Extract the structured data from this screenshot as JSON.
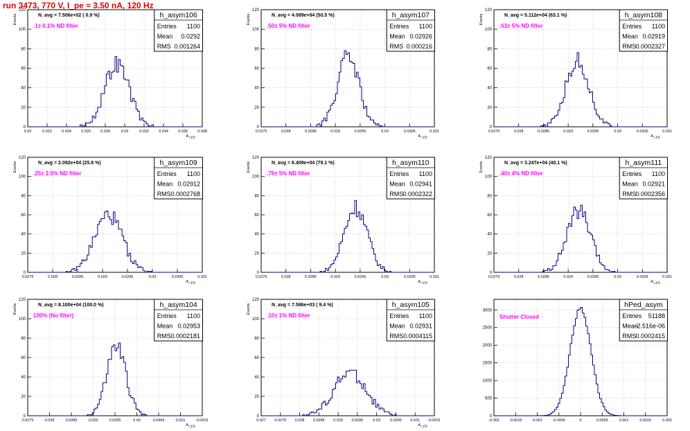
{
  "run_title": "run 3473,   770 V, I_pe ≈ 3.50 nA, 120 Hz",
  "colors": {
    "hist_line": "#000080",
    "title_red": "#e00000",
    "filter_text": "#ff00ff",
    "grid": "#c8c8c8"
  },
  "chart_data": [
    {
      "type": "histogram",
      "name": "h_asym106",
      "navg": "N_avg = 7.506e+02 ( 0.9 %)",
      "label": ".1± 0.1% ND filter",
      "stats": {
        "entries": "1100",
        "mean": "0.0292",
        "rms": "0.001264"
      },
      "ylabel": "Events",
      "xlabel": "A_LED",
      "xlim": [
        0.02,
        0.038
      ],
      "ylim": [
        0,
        120
      ],
      "xticks": [
        0.02,
        0.022,
        0.024,
        0.026,
        0.028,
        0.03,
        0.032,
        0.034,
        0.036,
        0.038
      ],
      "xtick_labels": [
        "0.02",
        "0.022",
        "0.024",
        "0.026",
        "0.028",
        "0.03",
        "0.032",
        "0.034",
        "0.036",
        "0.038"
      ],
      "yticks": [
        0,
        20,
        40,
        60,
        80,
        100,
        120
      ],
      "mu": 0.0292,
      "sigma": 0.00126,
      "peak": 65,
      "seed": 106
    },
    {
      "type": "histogram",
      "name": "h_asym107",
      "navg": "N_avg = 4.089e+04 (50.5 %)",
      "label": ".50± 5% ND filter",
      "stats": {
        "entries": "1100",
        "mean": "0.02926",
        "rms": "0.000216"
      },
      "ylabel": "Events",
      "xlabel": "A_LED",
      "xlim": [
        0.0275,
        0.031
      ],
      "ylim": [
        0,
        120
      ],
      "xticks": [
        0.0275,
        0.028,
        0.0285,
        0.029,
        0.0295,
        0.03,
        0.0305,
        0.031
      ],
      "xtick_labels": [
        "0.0275",
        "0.028",
        "0.0285",
        "0.029",
        "0.0295",
        "0.03",
        "0.0305",
        "0.031"
      ],
      "yticks": [
        0,
        20,
        40,
        60,
        80,
        100,
        120
      ],
      "mu": 0.02926,
      "sigma": 0.000216,
      "peak": 72,
      "seed": 107
    },
    {
      "type": "histogram",
      "name": "h_asym108",
      "navg": "N_avg = 5.112e+04 (63.1 %)",
      "label": ".63± 5% ND filter",
      "stats": {
        "entries": "1100",
        "mean": "0.02919",
        "rms": "0.0002327"
      },
      "ylabel": "Events",
      "xlabel": "A_LED",
      "xlim": [
        0.0275,
        0.031
      ],
      "ylim": [
        0,
        120
      ],
      "xticks": [
        0.0275,
        0.028,
        0.0285,
        0.029,
        0.0295,
        0.03,
        0.0305,
        0.031
      ],
      "xtick_labels": [
        "0.0275",
        "0.028",
        "0.0285",
        "0.029",
        "0.0295",
        "0.03",
        "0.0305",
        "0.031"
      ],
      "yticks": [
        0,
        20,
        40,
        60,
        80,
        100,
        120
      ],
      "mu": 0.02919,
      "sigma": 0.000233,
      "peak": 68,
      "seed": 108
    },
    {
      "type": "histogram",
      "name": "h_asym109",
      "navg": "N_avg = 2.092e+04 (25.8 %)",
      "label": ".25± 2.5% ND filter",
      "stats": {
        "entries": "1100",
        "mean": "0.02912",
        "rms": "0.0002768"
      },
      "ylabel": "Events",
      "xlabel": "A_LED",
      "xlim": [
        0.0275,
        0.031
      ],
      "ylim": [
        0,
        120
      ],
      "xticks": [
        0.0275,
        0.028,
        0.0285,
        0.029,
        0.0295,
        0.03,
        0.0305,
        0.031
      ],
      "xtick_labels": [
        "0.0275",
        "0.028",
        "0.0285",
        "0.029",
        "0.0295",
        "0.03",
        "0.0305",
        "0.031"
      ],
      "yticks": [
        0,
        20,
        40,
        60,
        80,
        100,
        120
      ],
      "mu": 0.02912,
      "sigma": 0.000277,
      "peak": 60,
      "seed": 109
    },
    {
      "type": "histogram",
      "name": "h_asym110",
      "navg": "N_avg = 6.409e+04 (79.1 %)",
      "label": ".79± 5% ND filter",
      "stats": {
        "entries": "1100",
        "mean": "0.02941",
        "rms": "0.0002322"
      },
      "ylabel": "Events",
      "xlabel": "A_LED",
      "xlim": [
        0.0275,
        0.031
      ],
      "ylim": [
        0,
        120
      ],
      "xticks": [
        0.0275,
        0.028,
        0.0285,
        0.029,
        0.0295,
        0.03,
        0.0305,
        0.031
      ],
      "xtick_labels": [
        "0.0275",
        "0.028",
        "0.0285",
        "0.029",
        "0.0295",
        "0.03",
        "0.0305",
        "0.031"
      ],
      "yticks": [
        0,
        20,
        40,
        60,
        80,
        100,
        120
      ],
      "mu": 0.02941,
      "sigma": 0.000232,
      "peak": 68,
      "seed": 110
    },
    {
      "type": "histogram",
      "name": "h_asym111",
      "navg": "N_avg = 3.247e+04 (40.1 %)",
      "label": ".40± 4% ND filter",
      "stats": {
        "entries": "1100",
        "mean": "0.02921",
        "rms": "0.0002356"
      },
      "ylabel": "Events",
      "xlabel": "A_LED",
      "xlim": [
        0.0275,
        0.031
      ],
      "ylim": [
        0,
        120
      ],
      "xticks": [
        0.0275,
        0.028,
        0.0285,
        0.029,
        0.0295,
        0.03,
        0.0305,
        0.031
      ],
      "xtick_labels": [
        "0.0275",
        "0.028",
        "0.0285",
        "0.029",
        "0.0295",
        "0.03",
        "0.0305",
        "0.031"
      ],
      "yticks": [
        0,
        20,
        40,
        60,
        80,
        100,
        120
      ],
      "mu": 0.02921,
      "sigma": 0.000236,
      "peak": 64,
      "seed": 111
    },
    {
      "type": "histogram",
      "name": "h_asym104",
      "navg": "N_avg = 8.100e+04 (100.0 %)",
      "label": "100% (No filter)",
      "stats": {
        "entries": "1100",
        "mean": "0.02953",
        "rms": "0.0002181"
      },
      "ylabel": "Events",
      "xlabel": "A_LED",
      "xlim": [
        0.0275,
        0.0315
      ],
      "ylim": [
        0,
        120
      ],
      "xticks": [
        0.0275,
        0.028,
        0.0285,
        0.029,
        0.0295,
        0.03,
        0.0305,
        0.031,
        0.0315
      ],
      "xtick_labels": [
        "0.0275",
        "0.028",
        "0.0285",
        "0.029",
        "0.0295",
        "0.03",
        "0.0305",
        "0.031",
        "0.0315"
      ],
      "yticks": [
        0,
        20,
        40,
        60,
        80,
        100,
        120
      ],
      "mu": 0.02953,
      "sigma": 0.000218,
      "peak": 72,
      "seed": 104
    },
    {
      "type": "histogram",
      "name": "h_asym105",
      "navg": "N_avg = 7.586e+03 ( 9.4 %)",
      "label": ".10± 1% ND filter",
      "stats": {
        "entries": "1100",
        "mean": "0.02931",
        "rms": "0.0004115"
      },
      "ylabel": "Events",
      "xlabel": "A_LED",
      "xlim": [
        0.027,
        0.0315
      ],
      "ylim": [
        0,
        120
      ],
      "xticks": [
        0.027,
        0.0275,
        0.028,
        0.0285,
        0.029,
        0.0295,
        0.03,
        0.0305,
        0.031,
        0.0315
      ],
      "xtick_labels": [
        "0.027",
        "0.0275",
        "0.028",
        "0.0285",
        "0.029",
        "0.0295",
        "0.03",
        "0.0305",
        "0.031",
        "0.0315"
      ],
      "yticks": [
        0,
        20,
        40,
        60,
        80,
        100,
        120
      ],
      "mu": 0.02931,
      "sigma": 0.000412,
      "peak": 45,
      "seed": 105
    },
    {
      "type": "histogram",
      "name": "hPed_asym",
      "navg": "",
      "label": "Shutter Closed",
      "stats": {
        "entries": "51188",
        "mean": "-2.516e-06",
        "rms": "0.0002415"
      },
      "ylabel": "",
      "xlabel": "",
      "xlim": [
        -0.002,
        0.002
      ],
      "ylim": [
        0,
        3300
      ],
      "xticks": [
        -0.002,
        -0.0015,
        -0.001,
        -0.0005,
        0,
        0.0005,
        0.001,
        0.0015,
        0.002
      ],
      "xtick_labels": [
        "-0.002",
        "-0.0015",
        "-0.001",
        "-0.0005",
        "0",
        "0.0005",
        "0.001",
        "0.0015",
        "0.002"
      ],
      "yticks": [
        0,
        500,
        1000,
        1500,
        2000,
        2500,
        3000
      ],
      "mu": 0.0,
      "sigma": 0.000241,
      "peak": 3050,
      "seed": 200
    }
  ]
}
